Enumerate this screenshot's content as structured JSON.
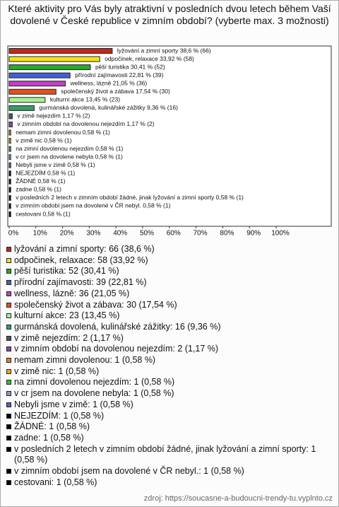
{
  "chart_data": {
    "type": "bar",
    "orientation": "horizontal",
    "title": "Které aktivity pro Vás byly atraktivní v posledních dvou letech během Vaší dovolené v České republice v zimním období? (vyberte max. 3 možnosti)",
    "categories": [
      "lyžování a zimní sporty",
      "odpočinek, relaxace",
      "pěší turistika",
      "přírodní zajímavosti",
      "wellness, lázně",
      "společenský život a zábava",
      "kulturní akce",
      "gurmánská dovolená, kulinářské zážitky",
      "v zimě nejezdím",
      "v zimním období na dovolenou nejezdím",
      "nemam zimni dovolenou",
      "v zimě nic",
      "na zimní dovolenou nejezdím",
      "v cr jsem na dovolene nebyla",
      "Nebyli jsme v zimě",
      "NEJEZDÍM",
      "ŽÁDNÉ",
      "zadne",
      "v posledních 2 letech v zimním období žádné, jinak lyžování a zimní sporty",
      "v zimním období jsem na dovolené v ČR nebyl.",
      "cestovani"
    ],
    "values": [
      38.6,
      33.92,
      30.41,
      22.81,
      21.05,
      17.54,
      13.45,
      9.36,
      1.17,
      1.17,
      0.58,
      0.58,
      0.58,
      0.58,
      0.58,
      0.58,
      0.58,
      0.58,
      0.58,
      0.58,
      0.58
    ],
    "value_labels": [
      "lyžování a zimní sporty 38,6 % (66)",
      "odpočinek, relaxace 33,92 % (58)",
      "pěší turistika 30,41 % (52)",
      "přírodní zajímavosti 22,81 % (39)",
      "wellness, lázně 21,05 % (36)",
      "společenský život a zábava 17,54 % (30)",
      "kulturní akce 13,45 % (23)",
      "gurmánská dovolená, kulinářské zážitky 9,36 % (16)",
      "v zimě nejezdím 1,17 % (2)",
      "v zimním období na dovolenou nejezdím 1,17 % (2)",
      "nemam zimni dovolenou 0,58 % (1)",
      "v zimě nic 0,58 % (1)",
      "na zimní dovolenou nejezdím 0,58 % (1)",
      "v cr jsem na dovolene nebyla 0,58 % (1)",
      "Nebyli jsme v zimě 0,58 % (1)",
      "NEJEZDÍM 0,58 % (1)",
      "ŽÁDNÉ 0,58 % (1)",
      "zadne 0,58 % (1)",
      "v posledních 2 letech v zimním období žádné, jinak lyžování a zimní sporty 0,58 % (1)",
      "v zimním období jsem na dovolené v ČR nebyl. 0,58 % (1)",
      "cestovani 0,58 % (1)"
    ],
    "legend_labels": [
      "lyžování a zimní sporty: 66 (38,6 %)",
      "odpočinek, relaxace: 58 (33,92 %)",
      "pěší turistika: 52 (30,41 %)",
      "přírodní zajímavosti: 39 (22,81 %)",
      "wellness, lázně: 36 (21,05 %)",
      "společenský život a zábava: 30 (17,54 %)",
      "kulturní akce: 23 (13,45 %)",
      "gurmánská dovolená, kulinářské zážitky: 16 (9,36 %)",
      "v zimě nejezdím: 2 (1,17 %)",
      "v zimním období na dovolenou nejezdím: 2 (1,17 %)",
      "nemam zimni dovolenou: 1 (0,58 %)",
      "v zimě nic: 1 (0,58 %)",
      "na zimní dovolenou nejezdím: 1 (0,58 %)",
      "v cr jsem na dovolene nebyla: 1 (0,58 %)",
      "Nebyli jsme v zimě: 1 (0,58 %)",
      "NEJEZDÍM: 1 (0,58 %)",
      "ŽÁDNÉ: 1 (0,58 %)",
      "zadne: 1 (0,58 %)",
      "v posledních 2 letech v zimním období žádné, jinak lyžování a zimní sporty: 1 (0,58 %)",
      "v zimním období jsem na dovolené v ČR nebyl.: 1 (0,58 %)",
      "cestovani: 1 (0,58 %)"
    ],
    "colors": [
      "#c0281c",
      "#f2e41a",
      "#2aa82a",
      "#4060d8",
      "#c040c8",
      "#e4501c",
      "#a8f090",
      "#3a9a68",
      "#485868",
      "#8a48a8",
      "#e88020",
      "#e8a818",
      "#30c030",
      "#8898c8",
      "#5060d0",
      "#000000",
      "#000000",
      "#000000",
      "#000000",
      "#000000",
      "#000000"
    ],
    "xlim": [
      0,
      120
    ],
    "xticks": [
      {
        "value": 0,
        "label": "0%"
      },
      {
        "value": 10,
        "label": "10%"
      },
      {
        "value": 20,
        "label": "20%"
      },
      {
        "value": 30,
        "label": "30%"
      },
      {
        "value": 40,
        "label": "40%"
      },
      {
        "value": 50,
        "label": "50%"
      },
      {
        "value": 60,
        "label": "60%"
      },
      {
        "value": 70,
        "label": "70%"
      },
      {
        "value": 80,
        "label": "80%"
      },
      {
        "value": 90,
        "label": "90%"
      },
      {
        "value": 100,
        "label": "100%"
      }
    ],
    "source": "zdroj: https://soucasne-a-budoucni-trendy-tu.vyplnto.cz"
  }
}
